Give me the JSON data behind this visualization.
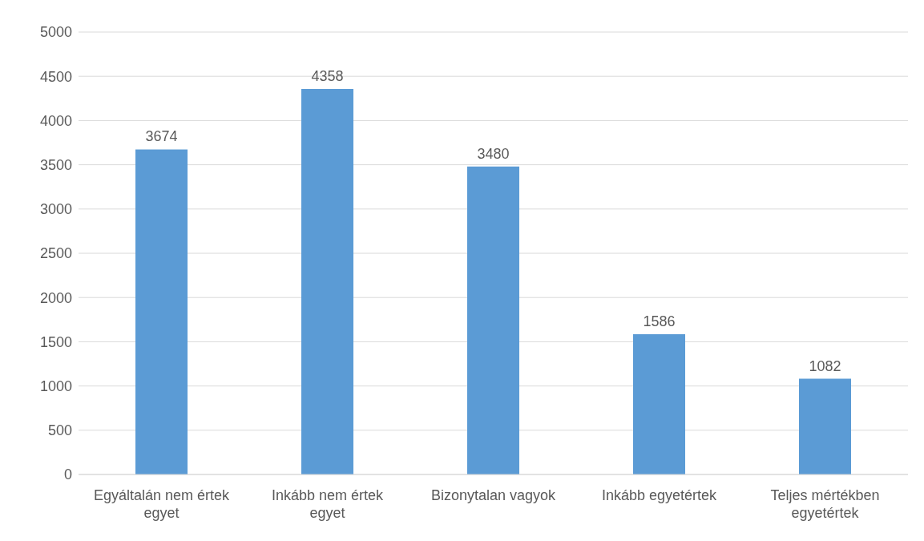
{
  "chart_data": {
    "type": "bar",
    "categories": [
      "Egyáltalán nem értek egyet",
      "Inkább nem értek egyet",
      "Bizonytalan vagyok",
      "Inkább egyetértek",
      "Teljes mértékben egyetértek"
    ],
    "values": [
      3674,
      4358,
      3480,
      1586,
      1082
    ],
    "color": "#5b9bd5",
    "ylim": [
      0,
      5000
    ],
    "yticks": [
      0,
      500,
      1000,
      1500,
      2000,
      2500,
      3000,
      3500,
      4000,
      4500,
      5000
    ],
    "grid": "y",
    "data_labels": true
  }
}
